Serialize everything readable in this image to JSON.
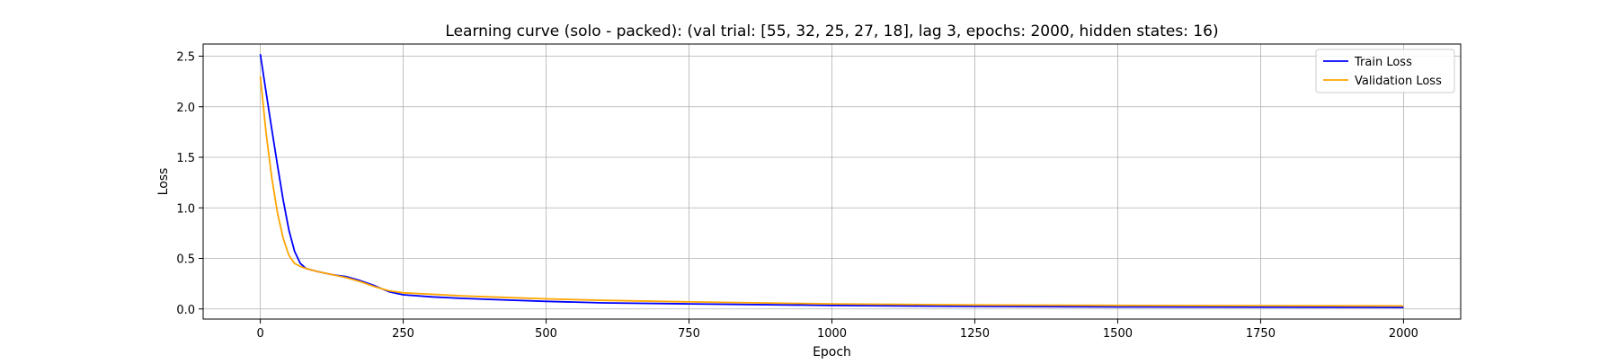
{
  "chart_data": {
    "type": "line",
    "title": "Learning curve (solo - packed): (val trial: [55, 32, 25, 27, 18], lag 3, epochs: 2000, hidden states: 16)",
    "xlabel": "Epoch",
    "ylabel": "Loss",
    "xlim": [
      -100,
      2100
    ],
    "ylim": [
      -0.1,
      2.62
    ],
    "xticks": [
      0,
      250,
      500,
      750,
      1000,
      1250,
      1500,
      1750,
      2000
    ],
    "xtick_labels": [
      "0",
      "250",
      "500",
      "750",
      "1000",
      "1250",
      "1500",
      "1750",
      "2000"
    ],
    "yticks": [
      0.0,
      0.5,
      1.0,
      1.5,
      2.0,
      2.5
    ],
    "ytick_labels": [
      "0.0",
      "0.5",
      "1.0",
      "1.5",
      "2.0",
      "2.5"
    ],
    "grid": true,
    "legend_position": "upper right",
    "series": [
      {
        "name": "Train Loss",
        "color": "#0000ff",
        "x": [
          0,
          10,
          20,
          30,
          40,
          50,
          60,
          70,
          80,
          100,
          125,
          150,
          175,
          200,
          225,
          250,
          300,
          350,
          400,
          500,
          600,
          750,
          1000,
          1250,
          1500,
          1750,
          2000
        ],
        "y": [
          2.52,
          2.15,
          1.78,
          1.42,
          1.08,
          0.78,
          0.57,
          0.45,
          0.4,
          0.37,
          0.34,
          0.32,
          0.28,
          0.23,
          0.17,
          0.14,
          0.12,
          0.105,
          0.095,
          0.075,
          0.06,
          0.05,
          0.035,
          0.025,
          0.02,
          0.018,
          0.015
        ]
      },
      {
        "name": "Validation Loss",
        "color": "#ffa500",
        "x": [
          0,
          10,
          20,
          30,
          40,
          50,
          60,
          70,
          80,
          100,
          125,
          150,
          175,
          200,
          225,
          250,
          300,
          350,
          400,
          500,
          600,
          750,
          1000,
          1250,
          1500,
          1750,
          2000
        ],
        "y": [
          2.3,
          1.75,
          1.3,
          0.95,
          0.7,
          0.53,
          0.45,
          0.42,
          0.4,
          0.37,
          0.34,
          0.31,
          0.27,
          0.22,
          0.18,
          0.16,
          0.145,
          0.13,
          0.12,
          0.1,
          0.085,
          0.07,
          0.05,
          0.04,
          0.035,
          0.032,
          0.03
        ]
      }
    ]
  }
}
